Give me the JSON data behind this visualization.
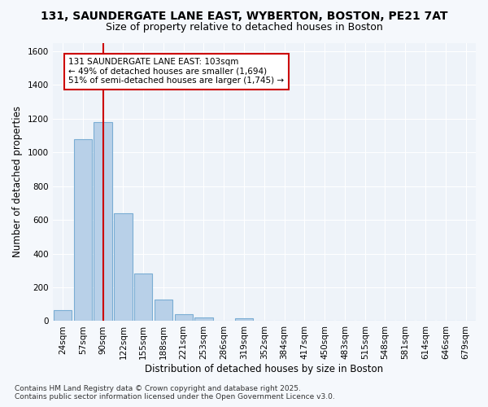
{
  "title_line1": "131, SAUNDERGATE LANE EAST, WYBERTON, BOSTON, PE21 7AT",
  "title_line2": "Size of property relative to detached houses in Boston",
  "xlabel": "Distribution of detached houses by size in Boston",
  "ylabel": "Number of detached properties",
  "footer_line1": "Contains HM Land Registry data © Crown copyright and database right 2025.",
  "footer_line2": "Contains public sector information licensed under the Open Government Licence v3.0.",
  "annotation_line1": "131 SAUNDERGATE LANE EAST: 103sqm",
  "annotation_line2": "← 49% of detached houses are smaller (1,694)",
  "annotation_line3": "51% of semi-detached houses are larger (1,745) →",
  "categories": [
    "24sqm",
    "57sqm",
    "90sqm",
    "122sqm",
    "155sqm",
    "188sqm",
    "221sqm",
    "253sqm",
    "286sqm",
    "319sqm",
    "352sqm",
    "384sqm",
    "417sqm",
    "450sqm",
    "483sqm",
    "515sqm",
    "548sqm",
    "581sqm",
    "614sqm",
    "646sqm",
    "679sqm"
  ],
  "values": [
    65,
    1080,
    1180,
    640,
    280,
    130,
    40,
    20,
    0,
    15,
    0,
    0,
    0,
    0,
    0,
    0,
    0,
    0,
    0,
    0,
    0
  ],
  "bar_color": "#b8d0e8",
  "bar_edge_color": "#7aadd4",
  "redline_x": 2.0,
  "ylim": [
    0,
    1650
  ],
  "yticks": [
    0,
    200,
    400,
    600,
    800,
    1000,
    1200,
    1400,
    1600
  ],
  "bg_color": "#f5f8fc",
  "plot_bg_color": "#eef3f9",
  "grid_color": "#ffffff",
  "annotation_box_color": "#ffffff",
  "annotation_box_edge": "#cc0000",
  "title_fontsize": 10,
  "subtitle_fontsize": 9,
  "axis_label_fontsize": 8.5,
  "tick_fontsize": 7.5,
  "annotation_fontsize": 7.5,
  "footer_fontsize": 6.5
}
